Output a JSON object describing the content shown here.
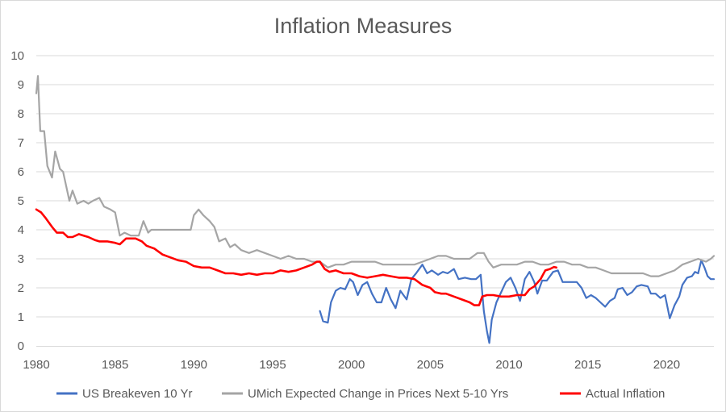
{
  "chart_data": {
    "type": "line",
    "title": "Inflation Measures",
    "xlabel": "",
    "ylabel": "",
    "xlim": [
      1980,
      2023
    ],
    "ylim": [
      0,
      10
    ],
    "x_ticks": [
      "1980",
      "1985",
      "1990",
      "1995",
      "2000",
      "2005",
      "2010",
      "2015",
      "2020"
    ],
    "y_ticks": [
      "0",
      "1",
      "2",
      "3",
      "4",
      "5",
      "6",
      "7",
      "8",
      "9",
      "10"
    ],
    "grid": "horizontal",
    "legend_position": "bottom",
    "series": [
      {
        "name": "US Breakeven 10 Yr",
        "color": "#4472c4",
        "points": [
          [
            1998.0,
            1.2
          ],
          [
            1998.2,
            0.85
          ],
          [
            1998.5,
            0.8
          ],
          [
            1998.7,
            1.5
          ],
          [
            1999.0,
            1.9
          ],
          [
            1999.3,
            2.0
          ],
          [
            1999.6,
            1.95
          ],
          [
            1999.9,
            2.3
          ],
          [
            2000.1,
            2.2
          ],
          [
            2000.4,
            1.75
          ],
          [
            2000.7,
            2.1
          ],
          [
            2001.0,
            2.2
          ],
          [
            2001.3,
            1.8
          ],
          [
            2001.6,
            1.5
          ],
          [
            2001.9,
            1.5
          ],
          [
            2002.2,
            2.0
          ],
          [
            2002.5,
            1.6
          ],
          [
            2002.8,
            1.3
          ],
          [
            2003.1,
            1.9
          ],
          [
            2003.5,
            1.6
          ],
          [
            2003.8,
            2.3
          ],
          [
            2004.1,
            2.5
          ],
          [
            2004.5,
            2.8
          ],
          [
            2004.8,
            2.5
          ],
          [
            2005.1,
            2.6
          ],
          [
            2005.5,
            2.45
          ],
          [
            2005.8,
            2.55
          ],
          [
            2006.1,
            2.5
          ],
          [
            2006.5,
            2.65
          ],
          [
            2006.8,
            2.3
          ],
          [
            2007.2,
            2.35
          ],
          [
            2007.6,
            2.3
          ],
          [
            2007.9,
            2.3
          ],
          [
            2008.2,
            2.45
          ],
          [
            2008.4,
            1.2
          ],
          [
            2008.6,
            0.5
          ],
          [
            2008.75,
            0.1
          ],
          [
            2008.9,
            0.9
          ],
          [
            2009.2,
            1.5
          ],
          [
            2009.5,
            1.85
          ],
          [
            2009.8,
            2.2
          ],
          [
            2010.1,
            2.35
          ],
          [
            2010.4,
            2.0
          ],
          [
            2010.7,
            1.55
          ],
          [
            2011.0,
            2.3
          ],
          [
            2011.3,
            2.55
          ],
          [
            2011.6,
            2.2
          ],
          [
            2011.8,
            1.8
          ],
          [
            2012.1,
            2.25
          ],
          [
            2012.4,
            2.25
          ],
          [
            2012.8,
            2.55
          ],
          [
            2013.1,
            2.6
          ],
          [
            2013.4,
            2.2
          ],
          [
            2013.7,
            2.2
          ],
          [
            2014.0,
            2.2
          ],
          [
            2014.3,
            2.2
          ],
          [
            2014.6,
            2.0
          ],
          [
            2014.9,
            1.65
          ],
          [
            2015.2,
            1.75
          ],
          [
            2015.5,
            1.65
          ],
          [
            2015.8,
            1.5
          ],
          [
            2016.1,
            1.35
          ],
          [
            2016.4,
            1.55
          ],
          [
            2016.7,
            1.65
          ],
          [
            2016.9,
            1.95
          ],
          [
            2017.2,
            2.0
          ],
          [
            2017.5,
            1.75
          ],
          [
            2017.8,
            1.85
          ],
          [
            2018.1,
            2.05
          ],
          [
            2018.4,
            2.1
          ],
          [
            2018.8,
            2.05
          ],
          [
            2019.0,
            1.8
          ],
          [
            2019.3,
            1.8
          ],
          [
            2019.6,
            1.65
          ],
          [
            2019.9,
            1.75
          ],
          [
            2020.2,
            0.95
          ],
          [
            2020.5,
            1.4
          ],
          [
            2020.8,
            1.7
          ],
          [
            2021.0,
            2.1
          ],
          [
            2021.3,
            2.35
          ],
          [
            2021.6,
            2.4
          ],
          [
            2021.8,
            2.55
          ],
          [
            2022.0,
            2.5
          ],
          [
            2022.2,
            2.95
          ],
          [
            2022.4,
            2.7
          ],
          [
            2022.6,
            2.4
          ],
          [
            2022.8,
            2.3
          ],
          [
            2023.0,
            2.3
          ]
        ]
      },
      {
        "name": "UMich Expected Change in Prices Next 5-10 Yrs",
        "color": "#a5a5a5",
        "points": [
          [
            1980.0,
            8.7
          ],
          [
            1980.1,
            9.3
          ],
          [
            1980.25,
            7.4
          ],
          [
            1980.5,
            7.4
          ],
          [
            1980.7,
            6.2
          ],
          [
            1981.0,
            5.8
          ],
          [
            1981.2,
            6.7
          ],
          [
            1981.5,
            6.1
          ],
          [
            1981.7,
            6.0
          ],
          [
            1981.9,
            5.5
          ],
          [
            1982.1,
            5.0
          ],
          [
            1982.3,
            5.35
          ],
          [
            1982.6,
            4.9
          ],
          [
            1983.0,
            5.0
          ],
          [
            1983.3,
            4.9
          ],
          [
            1983.6,
            5.0
          ],
          [
            1984.0,
            5.1
          ],
          [
            1984.3,
            4.8
          ],
          [
            1984.7,
            4.7
          ],
          [
            1985.0,
            4.6
          ],
          [
            1985.3,
            3.8
          ],
          [
            1985.6,
            3.9
          ],
          [
            1986.0,
            3.8
          ],
          [
            1986.5,
            3.8
          ],
          [
            1986.8,
            4.3
          ],
          [
            1987.1,
            3.9
          ],
          [
            1987.3,
            4.0
          ],
          [
            1988.0,
            4.0
          ],
          [
            1989.0,
            4.0
          ],
          [
            1989.8,
            4.0
          ],
          [
            1990.0,
            4.5
          ],
          [
            1990.3,
            4.7
          ],
          [
            1990.6,
            4.5
          ],
          [
            1991.0,
            4.3
          ],
          [
            1991.3,
            4.1
          ],
          [
            1991.6,
            3.6
          ],
          [
            1992.0,
            3.7
          ],
          [
            1992.3,
            3.4
          ],
          [
            1992.6,
            3.5
          ],
          [
            1993.0,
            3.3
          ],
          [
            1993.5,
            3.2
          ],
          [
            1994.0,
            3.3
          ],
          [
            1994.5,
            3.2
          ],
          [
            1995.0,
            3.1
          ],
          [
            1995.5,
            3.0
          ],
          [
            1996.0,
            3.1
          ],
          [
            1996.5,
            3.0
          ],
          [
            1997.0,
            3.0
          ],
          [
            1997.5,
            2.9
          ],
          [
            1998.0,
            2.9
          ],
          [
            1998.5,
            2.7
          ],
          [
            1999.0,
            2.8
          ],
          [
            1999.5,
            2.8
          ],
          [
            2000.0,
            2.9
          ],
          [
            2000.5,
            2.9
          ],
          [
            2001.0,
            2.9
          ],
          [
            2001.5,
            2.9
          ],
          [
            2002.0,
            2.8
          ],
          [
            2002.5,
            2.8
          ],
          [
            2003.0,
            2.8
          ],
          [
            2003.5,
            2.8
          ],
          [
            2004.0,
            2.8
          ],
          [
            2004.5,
            2.9
          ],
          [
            2005.0,
            3.0
          ],
          [
            2005.5,
            3.1
          ],
          [
            2006.0,
            3.1
          ],
          [
            2006.5,
            3.0
          ],
          [
            2007.0,
            3.0
          ],
          [
            2007.5,
            3.0
          ],
          [
            2008.0,
            3.2
          ],
          [
            2008.4,
            3.2
          ],
          [
            2008.7,
            2.9
          ],
          [
            2009.0,
            2.7
          ],
          [
            2009.5,
            2.8
          ],
          [
            2010.0,
            2.8
          ],
          [
            2010.5,
            2.8
          ],
          [
            2011.0,
            2.9
          ],
          [
            2011.5,
            2.9
          ],
          [
            2012.0,
            2.8
          ],
          [
            2012.5,
            2.8
          ],
          [
            2013.0,
            2.9
          ],
          [
            2013.5,
            2.9
          ],
          [
            2014.0,
            2.8
          ],
          [
            2014.5,
            2.8
          ],
          [
            2015.0,
            2.7
          ],
          [
            2015.5,
            2.7
          ],
          [
            2016.0,
            2.6
          ],
          [
            2016.5,
            2.5
          ],
          [
            2017.0,
            2.5
          ],
          [
            2017.5,
            2.5
          ],
          [
            2018.0,
            2.5
          ],
          [
            2018.5,
            2.5
          ],
          [
            2019.0,
            2.4
          ],
          [
            2019.5,
            2.4
          ],
          [
            2020.0,
            2.5
          ],
          [
            2020.5,
            2.6
          ],
          [
            2021.0,
            2.8
          ],
          [
            2021.5,
            2.9
          ],
          [
            2022.0,
            3.0
          ],
          [
            2022.5,
            2.9
          ],
          [
            2022.8,
            3.0
          ],
          [
            2023.0,
            3.1
          ]
        ]
      },
      {
        "name": "Actual Inflation",
        "color": "#ff0000",
        "points": [
          [
            1980.0,
            4.7
          ],
          [
            1980.3,
            4.6
          ],
          [
            1980.6,
            4.4
          ],
          [
            1981.0,
            4.1
          ],
          [
            1981.3,
            3.9
          ],
          [
            1981.7,
            3.9
          ],
          [
            1982.0,
            3.75
          ],
          [
            1982.3,
            3.75
          ],
          [
            1982.7,
            3.85
          ],
          [
            1983.0,
            3.8
          ],
          [
            1983.3,
            3.75
          ],
          [
            1983.7,
            3.65
          ],
          [
            1984.0,
            3.6
          ],
          [
            1984.5,
            3.6
          ],
          [
            1985.0,
            3.55
          ],
          [
            1985.3,
            3.5
          ],
          [
            1985.7,
            3.7
          ],
          [
            1986.0,
            3.7
          ],
          [
            1986.3,
            3.7
          ],
          [
            1986.7,
            3.6
          ],
          [
            1987.0,
            3.45
          ],
          [
            1987.5,
            3.35
          ],
          [
            1988.0,
            3.15
          ],
          [
            1988.5,
            3.05
          ],
          [
            1989.0,
            2.95
          ],
          [
            1989.5,
            2.9
          ],
          [
            1990.0,
            2.75
          ],
          [
            1990.5,
            2.7
          ],
          [
            1991.0,
            2.7
          ],
          [
            1991.5,
            2.6
          ],
          [
            1992.0,
            2.5
          ],
          [
            1992.5,
            2.5
          ],
          [
            1993.0,
            2.45
          ],
          [
            1993.5,
            2.5
          ],
          [
            1994.0,
            2.45
          ],
          [
            1994.5,
            2.5
          ],
          [
            1995.0,
            2.5
          ],
          [
            1995.5,
            2.6
          ],
          [
            1996.0,
            2.55
          ],
          [
            1996.5,
            2.6
          ],
          [
            1997.0,
            2.7
          ],
          [
            1997.5,
            2.8
          ],
          [
            1997.8,
            2.9
          ],
          [
            1998.0,
            2.9
          ],
          [
            1998.3,
            2.65
          ],
          [
            1998.6,
            2.55
          ],
          [
            1999.0,
            2.6
          ],
          [
            1999.5,
            2.5
          ],
          [
            2000.0,
            2.5
          ],
          [
            2000.5,
            2.4
          ],
          [
            2001.0,
            2.35
          ],
          [
            2001.5,
            2.4
          ],
          [
            2002.0,
            2.45
          ],
          [
            2002.5,
            2.4
          ],
          [
            2003.0,
            2.35
          ],
          [
            2003.5,
            2.35
          ],
          [
            2004.0,
            2.3
          ],
          [
            2004.5,
            2.1
          ],
          [
            2005.0,
            2.0
          ],
          [
            2005.3,
            1.85
          ],
          [
            2005.7,
            1.8
          ],
          [
            2006.0,
            1.8
          ],
          [
            2006.5,
            1.7
          ],
          [
            2007.0,
            1.6
          ],
          [
            2007.5,
            1.5
          ],
          [
            2007.8,
            1.4
          ],
          [
            2008.1,
            1.4
          ],
          [
            2008.3,
            1.7
          ],
          [
            2008.6,
            1.75
          ],
          [
            2009.0,
            1.75
          ],
          [
            2009.5,
            1.7
          ],
          [
            2010.0,
            1.7
          ],
          [
            2010.5,
            1.75
          ],
          [
            2011.0,
            1.75
          ],
          [
            2011.3,
            1.95
          ],
          [
            2011.6,
            2.05
          ],
          [
            2012.0,
            2.3
          ],
          [
            2012.3,
            2.6
          ],
          [
            2012.6,
            2.65
          ],
          [
            2012.85,
            2.72
          ],
          [
            2013.0,
            2.7
          ]
        ]
      }
    ]
  }
}
